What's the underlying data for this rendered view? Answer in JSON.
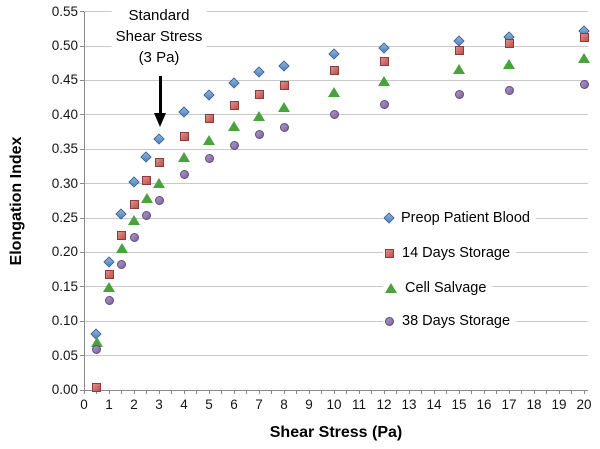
{
  "chart_data": {
    "type": "scatter",
    "title": "",
    "xlabel": "Shear Stress (Pa)",
    "ylabel": "Elongation Index",
    "xlim": [
      0,
      20
    ],
    "ylim": [
      0.0,
      0.55
    ],
    "x_tick_step": 1,
    "x_minor_tick_step": 0.5,
    "y_tick_step": 0.05,
    "grid": "horizontal",
    "legend_position": "middle-right",
    "x": [
      0.5,
      1,
      1.5,
      2,
      2.5,
      3,
      4,
      5,
      6,
      7,
      8,
      10,
      12,
      15,
      17,
      20
    ],
    "series": [
      {
        "name": "Preop Patient Blood",
        "marker": "diamond",
        "color": "#4F81BD",
        "color_light": "#8fb4e3",
        "border": "#38608f",
        "values": [
          0.081,
          0.186,
          0.255,
          0.302,
          0.338,
          0.364,
          0.403,
          0.428,
          0.446,
          0.461,
          0.47,
          0.488,
          0.496,
          0.507,
          0.513,
          0.521
        ]
      },
      {
        "name": "14 Days Storage",
        "marker": "square",
        "color": "#C0504D",
        "color_light": "#dd8f8d",
        "border": "#8f3b39",
        "values": [
          0.004,
          0.168,
          0.225,
          0.27,
          0.305,
          0.331,
          0.368,
          0.395,
          0.414,
          0.43,
          0.443,
          0.464,
          0.477,
          0.494,
          0.504,
          0.513
        ]
      },
      {
        "name": "Cell Salvage",
        "marker": "triangle",
        "color": "#4AA23C",
        "color_light": "#7cc36f",
        "border": "#37792d",
        "values": [
          0.07,
          0.15,
          0.207,
          0.247,
          0.279,
          0.301,
          0.338,
          0.363,
          0.384,
          0.398,
          0.412,
          0.433,
          0.449,
          0.467,
          0.474,
          0.483
        ]
      },
      {
        "name": "38 Days Storage",
        "marker": "circle",
        "color": "#8064A2",
        "color_light": "#ab97c4",
        "border": "#5e4a7a",
        "values": [
          0.059,
          0.13,
          0.182,
          0.222,
          0.253,
          0.276,
          0.313,
          0.336,
          0.356,
          0.371,
          0.381,
          0.401,
          0.415,
          0.43,
          0.436,
          0.444
        ]
      }
    ],
    "annotation": {
      "lines": [
        "Standard",
        "Shear Stress",
        "(3 Pa)"
      ],
      "arrow_target_x": 3,
      "arrow_target_y": 0.364
    },
    "colors": {
      "gridline": "#c9c9c9",
      "axis": "#8a8a8a",
      "text": "#111111",
      "annotation_arrow": "#000000"
    }
  }
}
